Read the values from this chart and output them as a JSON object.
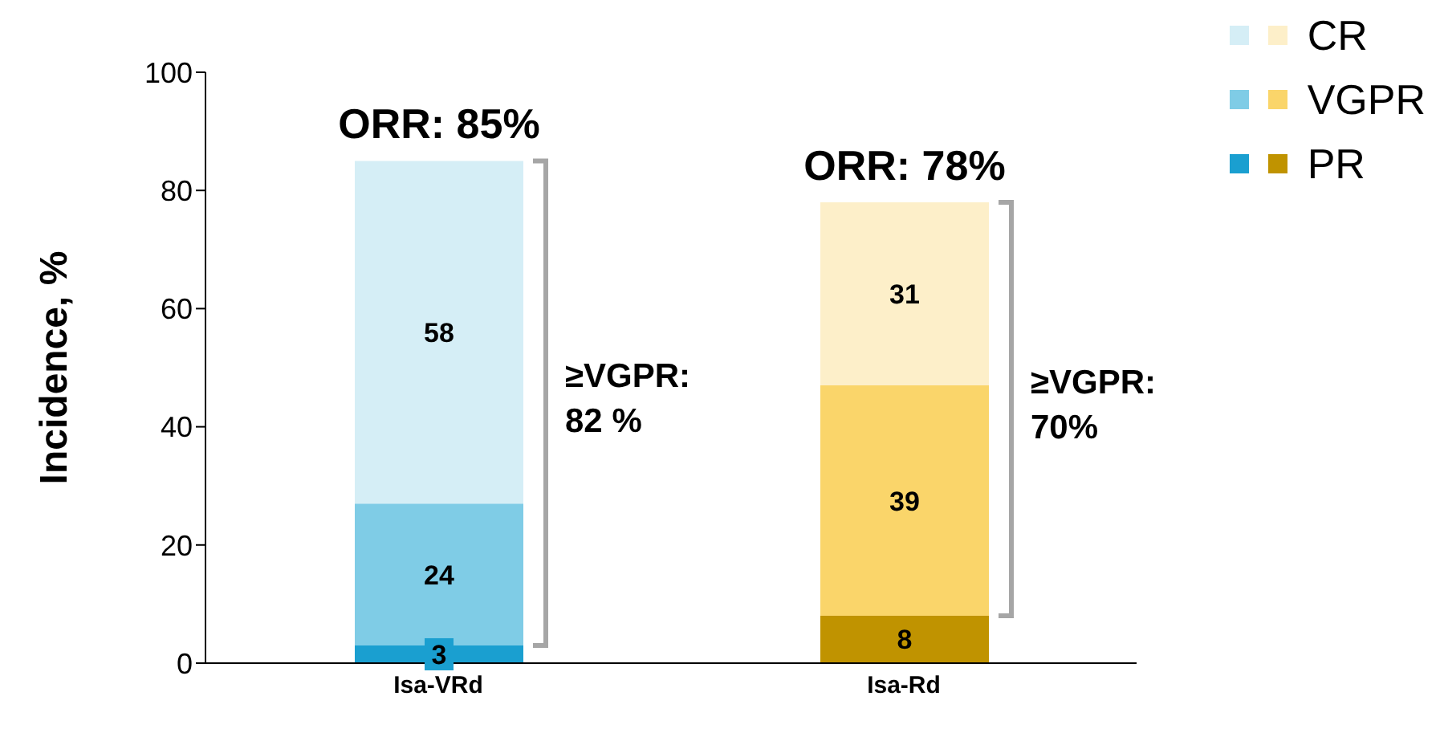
{
  "chart_data": {
    "type": "bar",
    "stacked": true,
    "categories": [
      "Isa-VRd",
      "Isa-Rd"
    ],
    "series": [
      {
        "name": "PR",
        "colors": [
          "#1a9fd0",
          "#c09300"
        ],
        "values": [
          3,
          8
        ]
      },
      {
        "name": "VGPR",
        "colors": [
          "#7fcce6",
          "#fad56a"
        ],
        "values": [
          24,
          39
        ]
      },
      {
        "name": "CR",
        "colors": [
          "#d5eef6",
          "#fdefc9"
        ],
        "values": [
          58,
          31
        ]
      }
    ],
    "ylabel": "Incidence, %",
    "ylim": [
      0,
      100
    ],
    "yticks": [
      0,
      20,
      40,
      60,
      80,
      100
    ],
    "data_labels": true,
    "legend": "top right",
    "grid": false,
    "annotations": [
      {
        "text": "ORR: 85%",
        "x": "Isa-VRd",
        "y": 85
      },
      {
        "text": "ORR: 78%",
        "x": "Isa-Rd",
        "y": 78
      },
      "≥VGPR: 82 %",
      "≥VGPR: 70%"
    ]
  }
}
